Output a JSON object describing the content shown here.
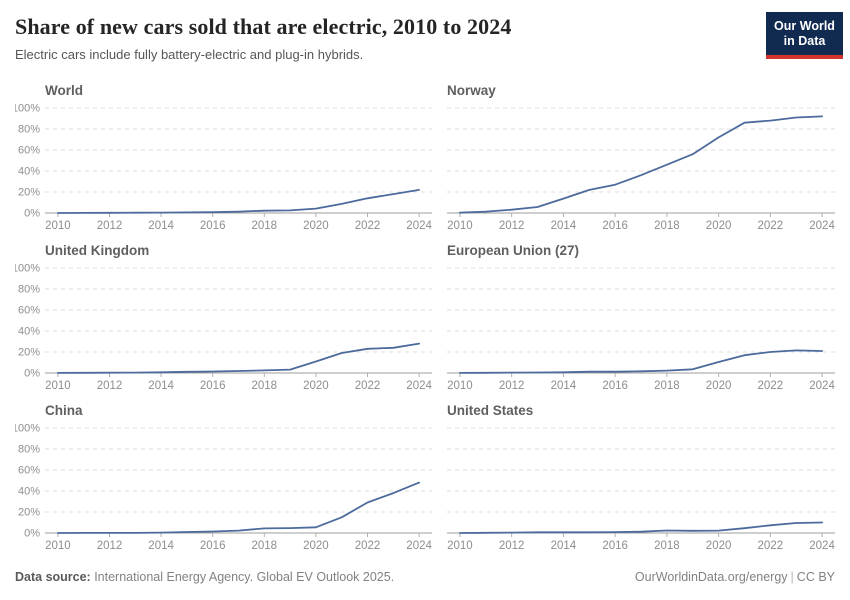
{
  "header": {
    "title": "Share of new cars sold that are electric, 2010 to 2024",
    "subtitle": "Electric cars include fully battery-electric and plug-in hybrids.",
    "logo": {
      "line1": "Our World",
      "line2": "in Data",
      "background_color": "#102a50",
      "accent_color": "#d0342c"
    }
  },
  "footer": {
    "source_label": "Data source:",
    "source_text": " International Energy Agency. Global EV Outlook 2025.",
    "credit": "OurWorldinData.org/energy",
    "separator": "|",
    "license": "CC BY"
  },
  "chart_data": {
    "type": "line",
    "title": "Share of new cars sold that are electric, 2010 to 2024",
    "x": [
      2010,
      2011,
      2012,
      2013,
      2014,
      2015,
      2016,
      2017,
      2018,
      2019,
      2020,
      2021,
      2022,
      2023,
      2024
    ],
    "xticks": [
      2010,
      2012,
      2014,
      2016,
      2018,
      2020,
      2022,
      2024
    ],
    "ylim": [
      0,
      100
    ],
    "yticks": [
      0,
      20,
      40,
      60,
      80,
      100
    ],
    "ytick_suffix": "%",
    "grid": "horizontal-dashed",
    "legend": "none",
    "line_color": "#4c6a9c",
    "facets": [
      {
        "name": "World",
        "values": [
          0.01,
          0.05,
          0.2,
          0.3,
          0.4,
          0.6,
          0.8,
          1.3,
          2.2,
          2.5,
          4.2,
          8.7,
          14,
          18,
          22
        ]
      },
      {
        "name": "Norway",
        "values": [
          0.3,
          1.3,
          3.1,
          5.7,
          13.7,
          22,
          27,
          36,
          46,
          56,
          72,
          86,
          88,
          91,
          92
        ]
      },
      {
        "name": "United Kingdom",
        "values": [
          0.1,
          0.2,
          0.3,
          0.4,
          0.7,
          1.1,
          1.4,
          1.9,
          2.5,
          3.2,
          11,
          19,
          23,
          24,
          28
        ]
      },
      {
        "name": "European Union (27)",
        "values": [
          0.1,
          0.2,
          0.4,
          0.5,
          0.7,
          1.2,
          1.2,
          1.6,
          2.3,
          3.5,
          10.5,
          17,
          20,
          21.5,
          21
        ]
      },
      {
        "name": "China",
        "values": [
          0.0,
          0.1,
          0.1,
          0.1,
          0.4,
          1.0,
          1.4,
          2.3,
          4.4,
          4.7,
          5.4,
          15,
          29,
          38,
          48
        ]
      },
      {
        "name": "United States",
        "values": [
          0.0,
          0.2,
          0.4,
          0.7,
          0.7,
          0.7,
          0.9,
          1.2,
          2.4,
          2.1,
          2.3,
          4.6,
          7.3,
          9.5,
          10
        ]
      }
    ]
  }
}
